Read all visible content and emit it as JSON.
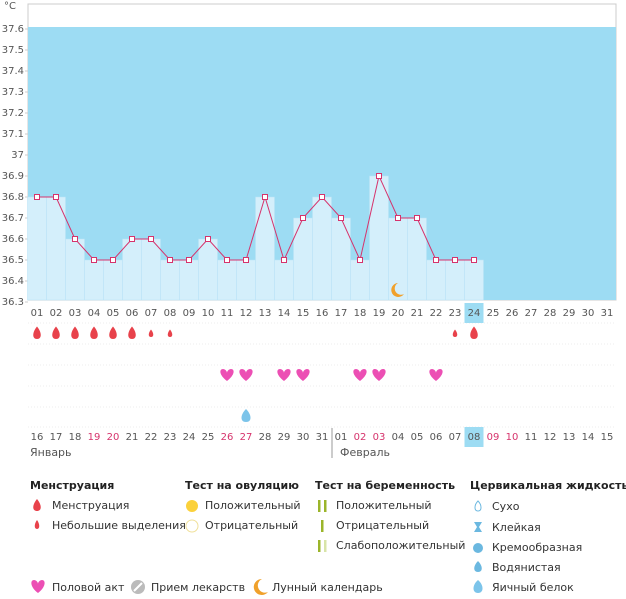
{
  "chart_data": {
    "type": "line",
    "y_unit": "°C",
    "categories": [
      "01",
      "02",
      "03",
      "04",
      "05",
      "06",
      "07",
      "08",
      "09",
      "10",
      "11",
      "12",
      "13",
      "14",
      "15",
      "16",
      "17",
      "18",
      "19",
      "20",
      "21",
      "22",
      "23",
      "24",
      "25",
      "26",
      "27",
      "28",
      "29",
      "30",
      "31"
    ],
    "values": [
      36.8,
      36.8,
      36.6,
      36.5,
      36.5,
      36.6,
      36.6,
      36.5,
      36.5,
      36.6,
      36.5,
      36.5,
      36.8,
      36.5,
      36.7,
      36.8,
      36.7,
      36.5,
      36.9,
      36.7,
      36.7,
      36.5,
      36.5,
      36.5,
      null,
      null,
      null,
      null,
      null,
      null,
      null
    ],
    "ylim": [
      36.3,
      37.6
    ],
    "yticks": [
      36.3,
      36.4,
      36.5,
      36.6,
      36.7,
      36.8,
      36.9,
      37,
      37.1,
      37.2,
      37.3,
      37.4,
      37.5,
      37.6
    ],
    "color": "#d6336c",
    "highlight_index": 23,
    "moon_index": 19,
    "menstruation": [
      2,
      2,
      2,
      2,
      2,
      2,
      1,
      1,
      0,
      0,
      0,
      0,
      0,
      0,
      0,
      0,
      0,
      0,
      0,
      0,
      0,
      0,
      1,
      2,
      0,
      0,
      0,
      0,
      0,
      0,
      0
    ],
    "intercourse": [
      0,
      0,
      0,
      0,
      0,
      0,
      0,
      0,
      0,
      0,
      1,
      1,
      0,
      1,
      1,
      0,
      0,
      1,
      1,
      0,
      0,
      1,
      0,
      0,
      0,
      0,
      0,
      0,
      0,
      0,
      0
    ],
    "fluid": [
      0,
      0,
      0,
      0,
      0,
      0,
      0,
      0,
      0,
      0,
      0,
      1,
      0,
      0,
      0,
      0,
      0,
      0,
      0,
      0,
      0,
      0,
      0,
      0,
      0,
      0,
      0,
      0,
      0,
      0,
      0
    ],
    "dates": [
      "16",
      "17",
      "18",
      "19",
      "20",
      "21",
      "22",
      "23",
      "24",
      "25",
      "26",
      "27",
      "28",
      "29",
      "30",
      "31",
      "01",
      "02",
      "03",
      "04",
      "05",
      "06",
      "07",
      "08",
      "09",
      "10",
      "11",
      "12",
      "13",
      "14",
      "15"
    ],
    "date_colors": [
      "#555",
      "#555",
      "#555",
      "#d6336c",
      "#d6336c",
      "#555",
      "#555",
      "#555",
      "#555",
      "#555",
      "#d6336c",
      "#d6336c",
      "#555",
      "#555",
      "#555",
      "#555",
      "#555",
      "#d6336c",
      "#d6336c",
      "#555",
      "#555",
      "#555",
      "#555",
      "#555",
      "#d6336c",
      "#d6336c",
      "#555",
      "#555",
      "#555",
      "#555",
      "#555"
    ],
    "months": [
      "Январь",
      "Февраль"
    ],
    "month_start": 16
  },
  "legend": {
    "menstruation": {
      "title": "Менструация",
      "items": [
        "Менструация",
        "Небольшие выделения"
      ]
    },
    "ovulation": {
      "title": "Тест на овуляцию",
      "items": [
        "Положительный",
        "Отрицательный"
      ]
    },
    "pregnancy": {
      "title": "Тест на беременность",
      "items": [
        "Положительный",
        "Отрицательный",
        "Слабоположительный"
      ]
    },
    "fluid": {
      "title": "Цервикальная жидкость",
      "items": [
        "Сухо",
        "Клейкая",
        "Кремообразная",
        "Водянистая",
        "Яичный белок"
      ]
    },
    "bottom": [
      "Половой акт",
      "Прием лекарств",
      "Лунный календарь"
    ]
  }
}
